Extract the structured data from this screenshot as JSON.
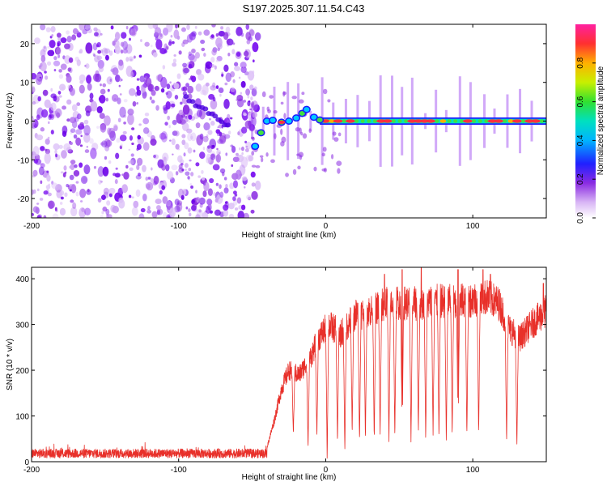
{
  "title": "S197.2025.307.11.54.C43",
  "chart_data": [
    {
      "type": "heatmap",
      "name": "spectrogram",
      "xlabel": "Height of straight line (km)",
      "ylabel": "Frequency (Hz)",
      "xlim": [
        -200,
        150
      ],
      "ylim": [
        -25,
        25
      ],
      "xticks": [
        -200,
        -100,
        0,
        100
      ],
      "yticks": [
        -20,
        -10,
        0,
        10,
        20
      ],
      "noise_region_x": [
        -200,
        -50
      ],
      "signal_center_freq": 0,
      "transition": [
        {
          "x": -48,
          "y": -6.5
        },
        {
          "x": -44,
          "y": -3
        },
        {
          "x": -40,
          "y": 0
        },
        {
          "x": -36,
          "y": 0.2
        },
        {
          "x": -30,
          "y": -0.3
        },
        {
          "x": -25,
          "y": 0
        },
        {
          "x": -20,
          "y": 0.8
        },
        {
          "x": -16,
          "y": 2
        },
        {
          "x": -13,
          "y": 3
        },
        {
          "x": -8,
          "y": 1
        },
        {
          "x": -4,
          "y": 0.3
        }
      ],
      "colorbar": {
        "label": "Normalized spectral amplitude",
        "ticks": [
          0.0,
          0.2,
          0.4,
          0.6,
          0.8
        ],
        "tick_labels": [
          "0.0",
          "0.2",
          "0.4",
          "0.6",
          "0.8"
        ],
        "range": [
          0,
          1
        ]
      }
    },
    {
      "type": "line",
      "name": "snr",
      "xlabel": "Height of straight line (km)",
      "ylabel": "SNR (10 * v/v)",
      "xlim": [
        -200,
        150
      ],
      "ylim": [
        0,
        425
      ],
      "xticks": [
        -200,
        -100,
        0,
        100
      ],
      "yticks": [
        0,
        100,
        200,
        300,
        400
      ],
      "color": "#e8302a",
      "baseline": {
        "x_range": [
          -200,
          -40
        ],
        "mean": 18,
        "spread": 20
      },
      "profile": [
        {
          "x": -40,
          "y": 30
        },
        {
          "x": -35,
          "y": 90
        },
        {
          "x": -30,
          "y": 160
        },
        {
          "x": -25,
          "y": 200
        },
        {
          "x": -18,
          "y": 190
        },
        {
          "x": -10,
          "y": 230
        },
        {
          "x": -5,
          "y": 270
        },
        {
          "x": 2,
          "y": 300
        },
        {
          "x": 10,
          "y": 280
        },
        {
          "x": 20,
          "y": 320
        },
        {
          "x": 30,
          "y": 330
        },
        {
          "x": 45,
          "y": 350
        },
        {
          "x": 60,
          "y": 345
        },
        {
          "x": 75,
          "y": 350
        },
        {
          "x": 90,
          "y": 350
        },
        {
          "x": 100,
          "y": 355
        },
        {
          "x": 110,
          "y": 360
        },
        {
          "x": 118,
          "y": 345
        },
        {
          "x": 125,
          "y": 290
        },
        {
          "x": 132,
          "y": 270
        },
        {
          "x": 140,
          "y": 300
        },
        {
          "x": 150,
          "y": 330
        }
      ],
      "dropouts": [
        {
          "x": -22,
          "min": 60
        },
        {
          "x": -12,
          "min": 30
        },
        {
          "x": -6,
          "min": 50
        },
        {
          "x": 1,
          "min": 10
        },
        {
          "x": 8,
          "min": 40
        },
        {
          "x": 13,
          "min": 25
        },
        {
          "x": 18,
          "min": 60
        },
        {
          "x": 23,
          "min": 40
        },
        {
          "x": 27,
          "min": 50
        },
        {
          "x": 33,
          "min": 45
        },
        {
          "x": 37,
          "min": 60
        },
        {
          "x": 43,
          "min": 45
        },
        {
          "x": 47,
          "min": 55
        },
        {
          "x": 52,
          "min": 50
        },
        {
          "x": 58,
          "min": 40
        },
        {
          "x": 63,
          "min": 60
        },
        {
          "x": 68,
          "min": 45
        },
        {
          "x": 73,
          "min": 55
        },
        {
          "x": 77,
          "min": 50
        },
        {
          "x": 82,
          "min": 45
        },
        {
          "x": 86,
          "min": 55
        },
        {
          "x": 90,
          "min": 40
        },
        {
          "x": 96,
          "min": 55
        },
        {
          "x": 104,
          "min": 60
        },
        {
          "x": 123,
          "min": 40
        },
        {
          "x": 130,
          "min": 35
        }
      ],
      "peaks": [
        {
          "x": 40,
          "y": 410
        },
        {
          "x": 52,
          "y": 420
        },
        {
          "x": 65,
          "y": 425
        },
        {
          "x": 90,
          "y": 420
        },
        {
          "x": 107,
          "y": 420
        },
        {
          "x": 112,
          "y": 410
        },
        {
          "x": 148,
          "y": 390
        }
      ]
    }
  ]
}
